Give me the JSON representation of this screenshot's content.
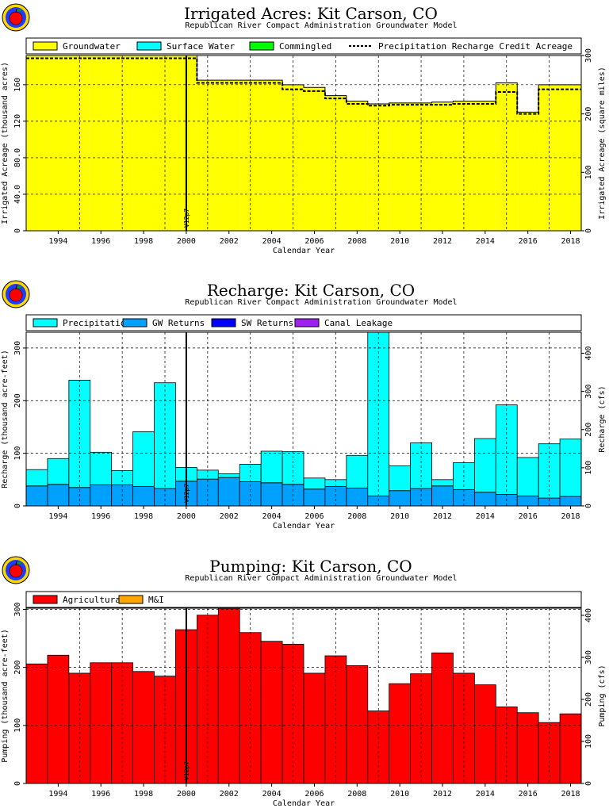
{
  "chart_data": [
    {
      "type": "area",
      "title": "Irrigated Acres: Kit Carson, CO",
      "subtitle": "Republican River Compact Administration Groundwater Model",
      "xlabel": "Calendar Year",
      "ylabel": "Irrigated Acreage (thousand acres)",
      "y2label": "Irrigated Acreage (square miles)",
      "xlim": [
        1993,
        2019
      ],
      "ylim": [
        0,
        192
      ],
      "y2lim": [
        0,
        300
      ],
      "yticks": [
        "0",
        "40.0",
        "80.0",
        "120",
        "160"
      ],
      "y2ticks": [
        "0",
        "100",
        "200",
        "300"
      ],
      "xticks": [
        "1994",
        "1996",
        "1998",
        "2000",
        "2002",
        "2004",
        "2006",
        "2008",
        "2010",
        "2012",
        "2014",
        "2016",
        "2018"
      ],
      "marker_label": "V12p7",
      "marker_year": 2000.5,
      "legend": [
        "Groundwater",
        "Surface Water",
        "Commingled",
        "Precipitation Recharge Credit Acreage"
      ],
      "colors": {
        "Groundwater": "#ffff00",
        "Surface Water": "#00ffff",
        "Commingled": "#00ff00"
      },
      "x": [
        1993,
        1994,
        1995,
        1996,
        1997,
        1998,
        1999,
        2000,
        2001,
        2002,
        2003,
        2004,
        2005,
        2006,
        2007,
        2008,
        2009,
        2010,
        2011,
        2012,
        2013,
        2014,
        2015,
        2016,
        2017,
        2018
      ],
      "series": [
        {
          "name": "Groundwater",
          "values": [
            192,
            192,
            192,
            192,
            192,
            192,
            192,
            192,
            165,
            165,
            165,
            165,
            160,
            157,
            148,
            142,
            139,
            140,
            140,
            141,
            142,
            142,
            162,
            130,
            160,
            160
          ]
        },
        {
          "name": "Precipitation Recharge Credit Acreage",
          "values": [
            189,
            189,
            189,
            189,
            189,
            189,
            189,
            189,
            162,
            162,
            162,
            162,
            155,
            153,
            145,
            139,
            137,
            138,
            138,
            138,
            139,
            139,
            152,
            128,
            155,
            155
          ]
        }
      ]
    },
    {
      "type": "bar",
      "title": "Recharge: Kit Carson, CO",
      "subtitle": "Republican River Compact Administration Groundwater Model",
      "xlabel": "Calendar Year",
      "ylabel": "Recharge (thousand acre-feet)",
      "y2label": "Recharge (cfs)",
      "xlim": [
        1993,
        2019
      ],
      "ylim": [
        0,
        330
      ],
      "y2lim": [
        0,
        455
      ],
      "yticks": [
        "0",
        "100",
        "200",
        "300"
      ],
      "y2ticks": [
        "0",
        "100",
        "200",
        "300",
        "400"
      ],
      "xticks": [
        "1994",
        "1996",
        "1998",
        "2000",
        "2002",
        "2004",
        "2006",
        "2008",
        "2010",
        "2012",
        "2014",
        "2016",
        "2018"
      ],
      "marker_label": "V12p7",
      "marker_year": 2000.5,
      "legend": [
        "Precipitation",
        "GW Returns",
        "SW Returns",
        "Canal Leakage"
      ],
      "colors": {
        "Precipitation": "#00ffff",
        "GW Returns": "#00a0ff",
        "SW Returns": "#0000ff",
        "Canal Leakage": "#a020f0"
      },
      "x": [
        1993,
        1994,
        1995,
        1996,
        1997,
        1998,
        1999,
        2000,
        2001,
        2002,
        2003,
        2004,
        2005,
        2006,
        2007,
        2008,
        2009,
        2010,
        2011,
        2012,
        2013,
        2014,
        2015,
        2016,
        2017,
        2018
      ],
      "series": [
        {
          "name": "GW Returns",
          "values": [
            38,
            41,
            35,
            40,
            40,
            37,
            33,
            47,
            51,
            54,
            46,
            44,
            41,
            32,
            37,
            34,
            19,
            29,
            33,
            38,
            31,
            26,
            22,
            19,
            15,
            18
          ]
        },
        {
          "name": "Precipitation",
          "values": [
            31,
            49,
            204,
            62,
            27,
            104,
            201,
            26,
            17,
            7,
            33,
            60,
            62,
            21,
            13,
            62,
            311,
            47,
            87,
            12,
            51,
            102,
            170,
            73,
            103,
            109
          ]
        }
      ]
    },
    {
      "type": "bar",
      "title": "Pumping: Kit Carson, CO",
      "subtitle": "Republican River Compact Administration Groundwater Model",
      "xlabel": "Calendar Year",
      "ylabel": "Pumping (thousand acre-feet)",
      "y2label": "Pumping (cfs)",
      "xlim": [
        1993,
        2019
      ],
      "ylim": [
        0,
        302
      ],
      "y2lim": [
        0,
        417
      ],
      "yticks": [
        "0",
        "100",
        "200",
        "300"
      ],
      "y2ticks": [
        "0",
        "100",
        "200",
        "300",
        "400"
      ],
      "xticks": [
        "1994",
        "1996",
        "1998",
        "2000",
        "2002",
        "2004",
        "2006",
        "2008",
        "2010",
        "2012",
        "2014",
        "2016",
        "2018"
      ],
      "marker_label": "V12p7",
      "marker_year": 2000.5,
      "legend": [
        "Agricultural",
        "M&I"
      ],
      "colors": {
        "Agricultural": "#ff0000",
        "M&I": "#ffa500"
      },
      "x": [
        1993,
        1994,
        1995,
        1996,
        1997,
        1998,
        1999,
        2000,
        2001,
        2002,
        2003,
        2004,
        2005,
        2006,
        2007,
        2008,
        2009,
        2010,
        2011,
        2012,
        2013,
        2014,
        2015,
        2016,
        2017,
        2018
      ],
      "series": [
        {
          "name": "Agricultural",
          "values": [
            206,
            221,
            190,
            208,
            208,
            193,
            185,
            265,
            290,
            302,
            260,
            245,
            240,
            190,
            220,
            203,
            125,
            172,
            189,
            225,
            190,
            170,
            132,
            122,
            105,
            120
          ]
        }
      ]
    }
  ]
}
